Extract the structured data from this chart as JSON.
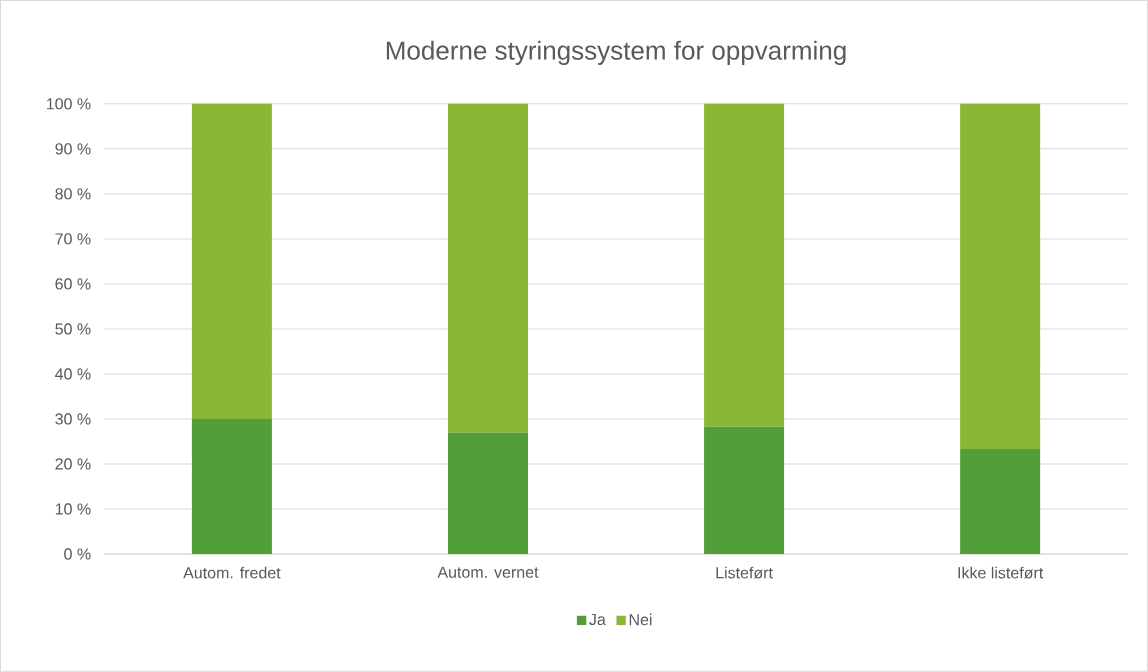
{
  "chart_data": {
    "type": "bar",
    "stacked": true,
    "title": "Moderne styringssystem for oppvarming",
    "categories": [
      "Autom. fredet",
      "Autom. vernet",
      "Listeført",
      "Ikke listeført"
    ],
    "series": [
      {
        "name": "Ja",
        "color": "#529e38",
        "values": [
          30,
          27,
          28.3,
          23.3
        ]
      },
      {
        "name": "Nei",
        "color": "#8bb834",
        "values": [
          70,
          73,
          71.7,
          76.7
        ]
      }
    ],
    "ylim": [
      0,
      100
    ],
    "yticks": [
      {
        "value": 0,
        "label": "0 %"
      },
      {
        "value": 10,
        "label": "10 %"
      },
      {
        "value": 20,
        "label": "20 %"
      },
      {
        "value": 30,
        "label": "30 %"
      },
      {
        "value": 40,
        "label": "40 %"
      },
      {
        "value": 50,
        "label": "50 %"
      },
      {
        "value": 60,
        "label": "60 %"
      },
      {
        "value": 70,
        "label": "70 %"
      },
      {
        "value": 80,
        "label": "80 %"
      },
      {
        "value": 90,
        "label": "90 %"
      },
      {
        "value": 100,
        "label": "100 %"
      }
    ],
    "grid": "y",
    "legend": "bottom"
  }
}
